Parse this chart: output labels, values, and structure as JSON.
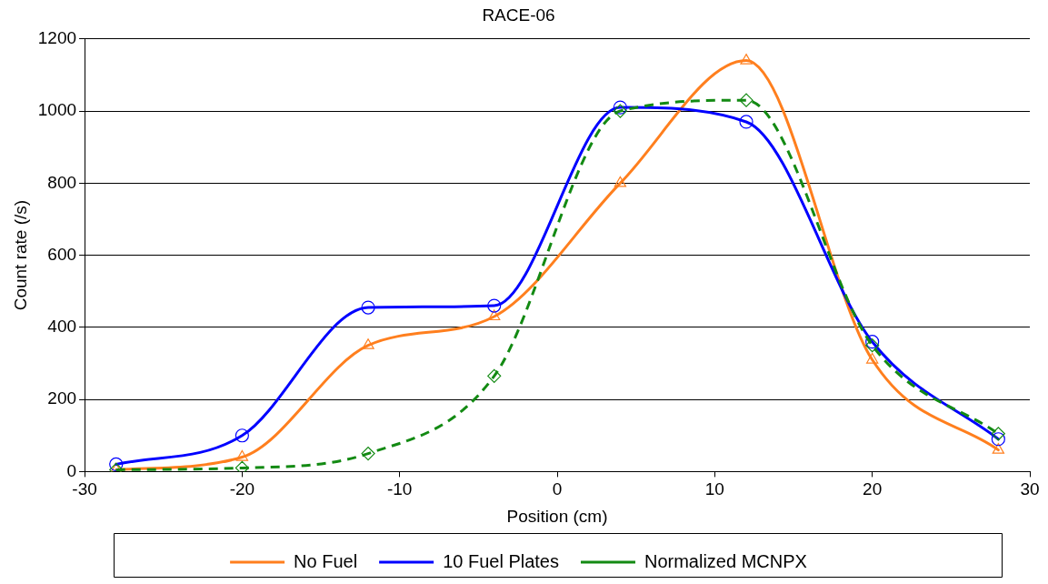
{
  "chart_data": {
    "type": "line",
    "title": "RACE-06",
    "xlabel": "Position (cm)",
    "ylabel": "Count rate (/s)",
    "x": [
      -28,
      -20,
      -12,
      -4,
      4,
      12,
      20,
      28
    ],
    "series": [
      {
        "name": "No Fuel",
        "color": "#ff7f1e",
        "marker": "triangle",
        "line_style": "solid",
        "values": [
          5,
          40,
          350,
          430,
          800,
          1140,
          310,
          60
        ]
      },
      {
        "name": "10 Fuel Plates",
        "color": "#0000ff",
        "marker": "circle",
        "line_style": "solid",
        "values": [
          20,
          100,
          455,
          460,
          1010,
          970,
          360,
          90
        ]
      },
      {
        "name": "Normalized MCNPX",
        "color": "#138a13",
        "marker": "diamond",
        "line_style": "dashed",
        "values": [
          5,
          10,
          50,
          265,
          1000,
          1030,
          350,
          105
        ]
      }
    ],
    "xlim": [
      -30,
      30
    ],
    "xticks": [
      -30,
      -20,
      -10,
      0,
      10,
      20,
      30
    ],
    "ylim": [
      0,
      1200
    ],
    "yticks": [
      0,
      200,
      400,
      600,
      800,
      1000,
      1200
    ],
    "grid": "y",
    "legend": "bottom"
  }
}
